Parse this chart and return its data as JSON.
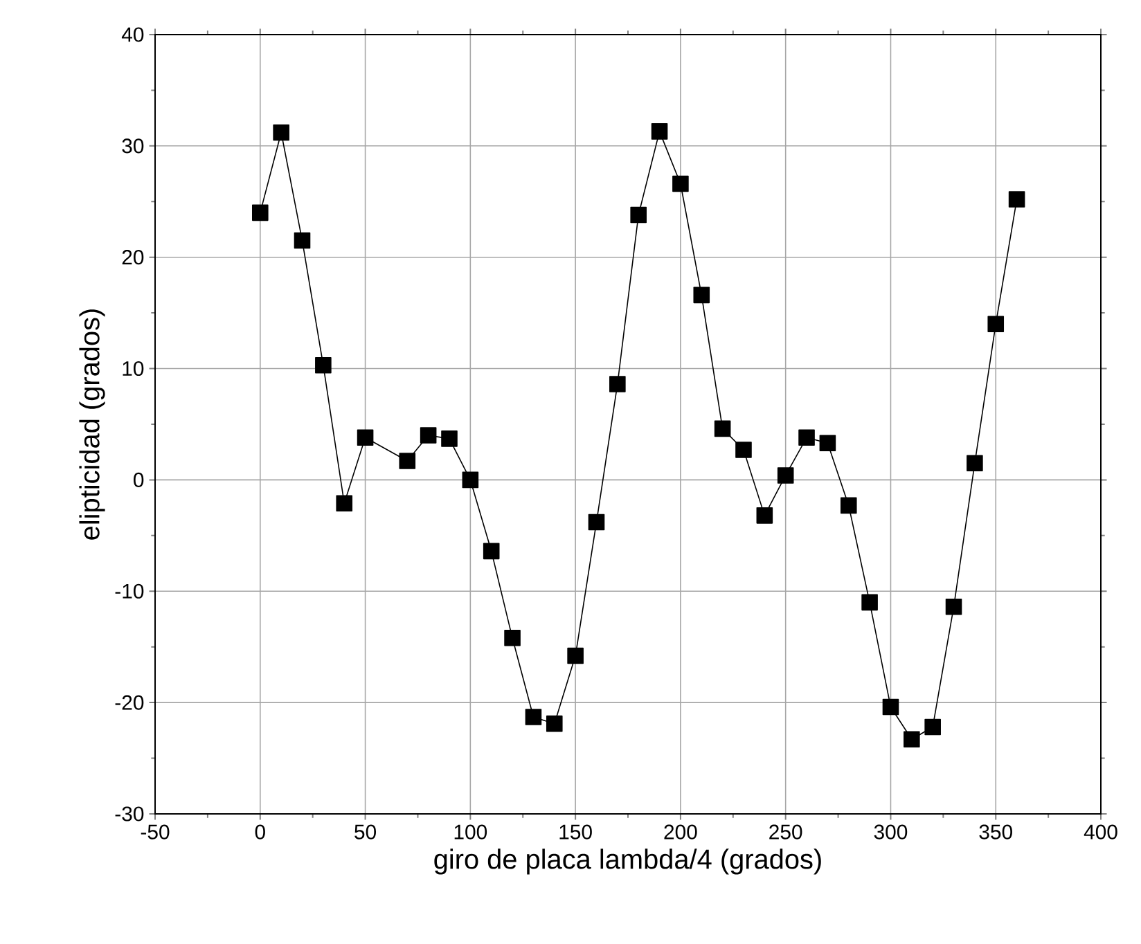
{
  "chart_data": {
    "type": "line",
    "xlabel": "giro de placa lambda/4 (grados)",
    "ylabel": "elipticidad (grados)",
    "x": [
      0,
      10,
      20,
      30,
      40,
      50,
      70,
      80,
      90,
      100,
      110,
      120,
      130,
      140,
      150,
      160,
      170,
      180,
      190,
      200,
      210,
      220,
      230,
      240,
      250,
      260,
      270,
      280,
      290,
      300,
      310,
      320,
      330,
      340,
      350,
      360
    ],
    "values": [
      24,
      31.2,
      21.5,
      10.3,
      -2.1,
      3.8,
      1.7,
      4,
      3.7,
      0,
      -6.4,
      -14.2,
      -21.3,
      -21.9,
      -15.8,
      -3.8,
      8.6,
      23.8,
      31.3,
      26.6,
      16.6,
      4.6,
      2.7,
      -3.2,
      0.4,
      3.8,
      3.3,
      -2.3,
      -11,
      -20.4,
      -23.3,
      -22.2,
      -11.4,
      1.5,
      14,
      25.2
    ],
    "color": "#000000",
    "marker": "square",
    "line_style": "solid",
    "grid": true,
    "xlim": [
      -50,
      400
    ],
    "ylim": [
      -30,
      40
    ],
    "xticks": [
      -50,
      0,
      50,
      100,
      150,
      200,
      250,
      300,
      350,
      400
    ],
    "yticks": [
      -30,
      -20,
      -10,
      0,
      10,
      20,
      30,
      40
    ]
  }
}
